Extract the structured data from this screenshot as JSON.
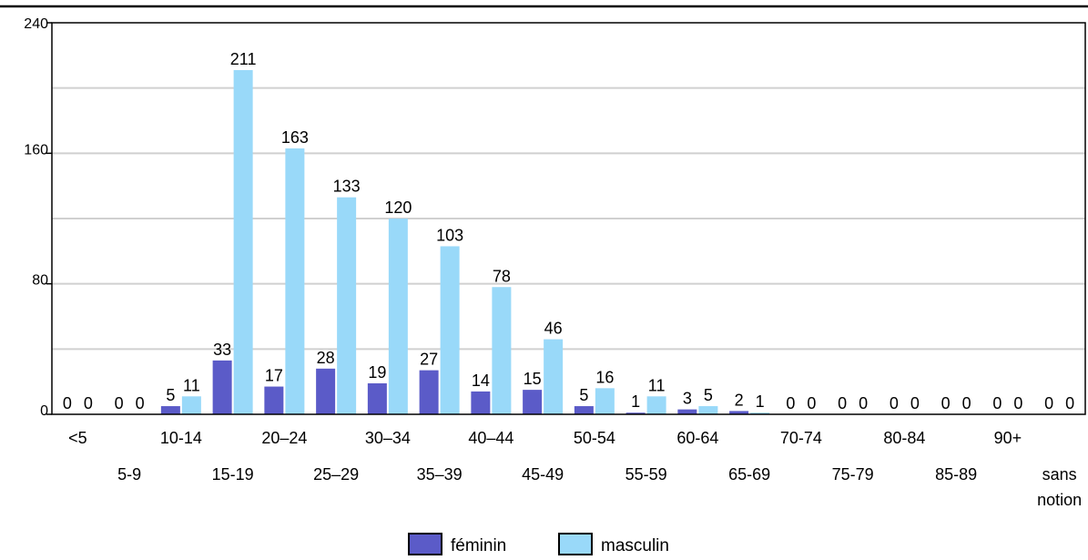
{
  "chart_data": {
    "type": "bar",
    "categories": [
      "<5",
      "5-9",
      "10-14",
      "15-19",
      "20–24",
      "25–29",
      "30–34",
      "35–39",
      "40–44",
      "45-49",
      "50-54",
      "55-59",
      "60-64",
      "65-69",
      "70-74",
      "75-79",
      "80-84",
      "85-89",
      "90+",
      "sans notion"
    ],
    "category_lines": [
      [
        "<5"
      ],
      [
        "5-9"
      ],
      [
        "10-14"
      ],
      [
        "15-19"
      ],
      [
        "20–24"
      ],
      [
        "25–29"
      ],
      [
        "30–34"
      ],
      [
        "35–39"
      ],
      [
        "40–44"
      ],
      [
        "45-49"
      ],
      [
        "50-54"
      ],
      [
        "55-59"
      ],
      [
        "60-64"
      ],
      [
        "65-69"
      ],
      [
        "70-74"
      ],
      [
        "75-79"
      ],
      [
        "80-84"
      ],
      [
        "85-89"
      ],
      [
        "90+"
      ],
      [
        "sans",
        "notion"
      ]
    ],
    "series": [
      {
        "name": "féminin",
        "color": "#5b5bc8",
        "values": [
          0,
          0,
          5,
          33,
          17,
          28,
          19,
          27,
          14,
          15,
          5,
          1,
          3,
          2,
          0,
          0,
          0,
          0,
          0,
          0
        ]
      },
      {
        "name": "masculin",
        "color": "#99d9f9",
        "values": [
          0,
          0,
          11,
          211,
          163,
          133,
          120,
          103,
          78,
          46,
          16,
          11,
          5,
          1,
          0,
          0,
          0,
          0,
          0,
          0
        ]
      }
    ],
    "yticks": [
      "0",
      "80",
      "160",
      "240"
    ],
    "ylim": [
      0,
      240
    ],
    "grid": true,
    "legend": "bottom-center",
    "title": "",
    "xlabel": "",
    "ylabel": ""
  }
}
